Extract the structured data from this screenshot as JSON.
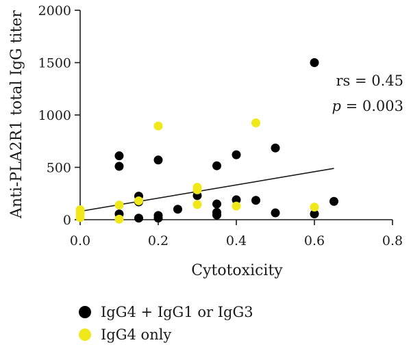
{
  "chart_data": {
    "type": "scatter",
    "title": "",
    "xlabel": "Cytotoxicity",
    "ylabel": "Anti-PLA2R1 total IgG titer",
    "xlim": [
      0,
      0.8
    ],
    "ylim": [
      0,
      2000
    ],
    "x_ticks": [
      "0.0",
      "0.2",
      "0.4",
      "0.6",
      "0.8"
    ],
    "y_ticks": [
      "0",
      "500",
      "1000",
      "1500",
      "2000"
    ],
    "grid": false,
    "series": [
      {
        "name": "IgG4 + IgG1 or IgG3",
        "color": "#000000",
        "points": [
          [
            0.1,
            610
          ],
          [
            0.1,
            510
          ],
          [
            0.1,
            55
          ],
          [
            0.15,
            225
          ],
          [
            0.15,
            170
          ],
          [
            0.15,
            15
          ],
          [
            0.2,
            570
          ],
          [
            0.2,
            40
          ],
          [
            0.2,
            15
          ],
          [
            0.25,
            100
          ],
          [
            0.3,
            230
          ],
          [
            0.35,
            515
          ],
          [
            0.35,
            150
          ],
          [
            0.35,
            70
          ],
          [
            0.35,
            45
          ],
          [
            0.4,
            620
          ],
          [
            0.4,
            190
          ],
          [
            0.45,
            185
          ],
          [
            0.5,
            685
          ],
          [
            0.5,
            65
          ],
          [
            0.6,
            1500
          ],
          [
            0.6,
            55
          ],
          [
            0.65,
            175
          ]
        ]
      },
      {
        "name": "IgG4 only",
        "color": "#f0e81a",
        "points": [
          [
            0,
            95
          ],
          [
            0,
            60
          ],
          [
            0,
            20
          ],
          [
            0.1,
            140
          ],
          [
            0.1,
            5
          ],
          [
            0.15,
            180
          ],
          [
            0.2,
            895
          ],
          [
            0.3,
            310
          ],
          [
            0.3,
            285
          ],
          [
            0.3,
            145
          ],
          [
            0.4,
            130
          ],
          [
            0.45,
            925
          ],
          [
            0.6,
            120
          ]
        ]
      }
    ],
    "trendline": {
      "x": [
        0,
        0.65
      ],
      "y": [
        80,
        490
      ]
    },
    "annotations": [
      "rs = 0.45",
      "p = 0.003"
    ],
    "legend_position": "bottom-left"
  },
  "stats": {
    "rs_text": "rs = 0.45",
    "p_symbol": "p",
    "p_value": " = 0.003"
  },
  "legend": {
    "items": [
      {
        "label": "IgG4 + IgG1 or IgG3",
        "color": "#000000"
      },
      {
        "label": "IgG4 only",
        "color": "#f0e81a"
      }
    ]
  }
}
